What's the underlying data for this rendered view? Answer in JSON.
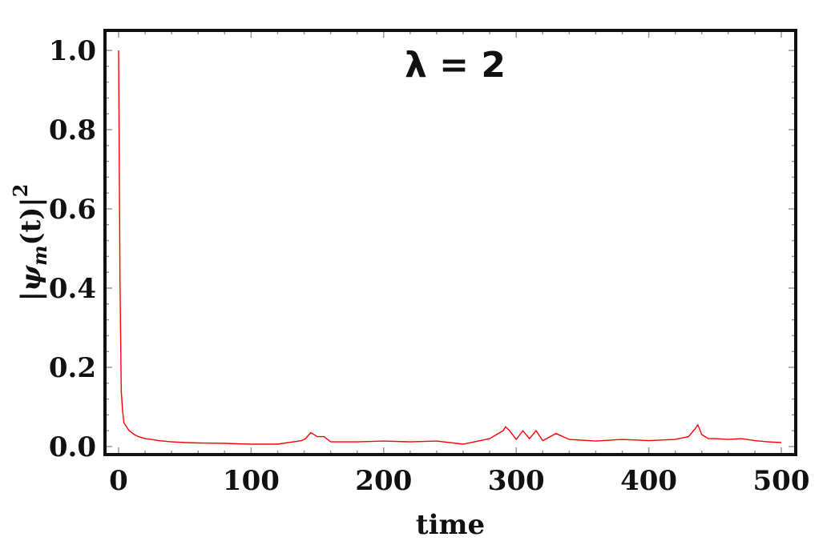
{
  "chart_data": {
    "type": "line",
    "annotation": "λ = 2",
    "xlabel": "time",
    "ylabel": "|ψm(t)|2",
    "ylabel_parts": {
      "open": "|",
      "psi": "ψ",
      "sub": "m",
      "arg": "(t)",
      "close": "|",
      "sup": "2"
    },
    "xlim": [
      0,
      500
    ],
    "ylim": [
      0,
      1.0
    ],
    "xticks": [
      0,
      100,
      200,
      300,
      400,
      500
    ],
    "xtick_labels": [
      "0",
      "100",
      "200",
      "300",
      "400",
      "500"
    ],
    "yticks": [
      0,
      0.2,
      0.4,
      0.6,
      0.8,
      1.0
    ],
    "ytick_labels": [
      "0.0",
      "0.2",
      "0.4",
      "0.6",
      "0.8",
      "1.0"
    ],
    "series": [
      {
        "color": "#ff0000",
        "x": [
          0,
          1,
          2,
          3,
          4,
          6,
          8,
          10,
          12,
          15,
          20,
          25,
          30,
          40,
          50,
          60,
          80,
          100,
          120,
          138,
          141,
          145,
          150,
          155,
          160,
          180,
          200,
          220,
          240,
          260,
          280,
          285,
          290,
          292,
          295,
          300,
          305,
          310,
          315,
          320,
          330,
          340,
          360,
          380,
          400,
          420,
          430,
          435,
          437,
          440,
          445,
          450,
          460,
          470,
          480,
          490,
          500
        ],
        "y": [
          1.0,
          0.43,
          0.14,
          0.09,
          0.06,
          0.05,
          0.04,
          0.035,
          0.03,
          0.025,
          0.02,
          0.018,
          0.015,
          0.012,
          0.01,
          0.009,
          0.008,
          0.006,
          0.006,
          0.015,
          0.02,
          0.035,
          0.025,
          0.025,
          0.012,
          0.012,
          0.014,
          0.012,
          0.014,
          0.006,
          0.02,
          0.03,
          0.04,
          0.05,
          0.04,
          0.018,
          0.04,
          0.02,
          0.04,
          0.015,
          0.033,
          0.018,
          0.014,
          0.018,
          0.015,
          0.018,
          0.025,
          0.045,
          0.055,
          0.03,
          0.02,
          0.02,
          0.018,
          0.02,
          0.015,
          0.012,
          0.01
        ]
      }
    ]
  }
}
